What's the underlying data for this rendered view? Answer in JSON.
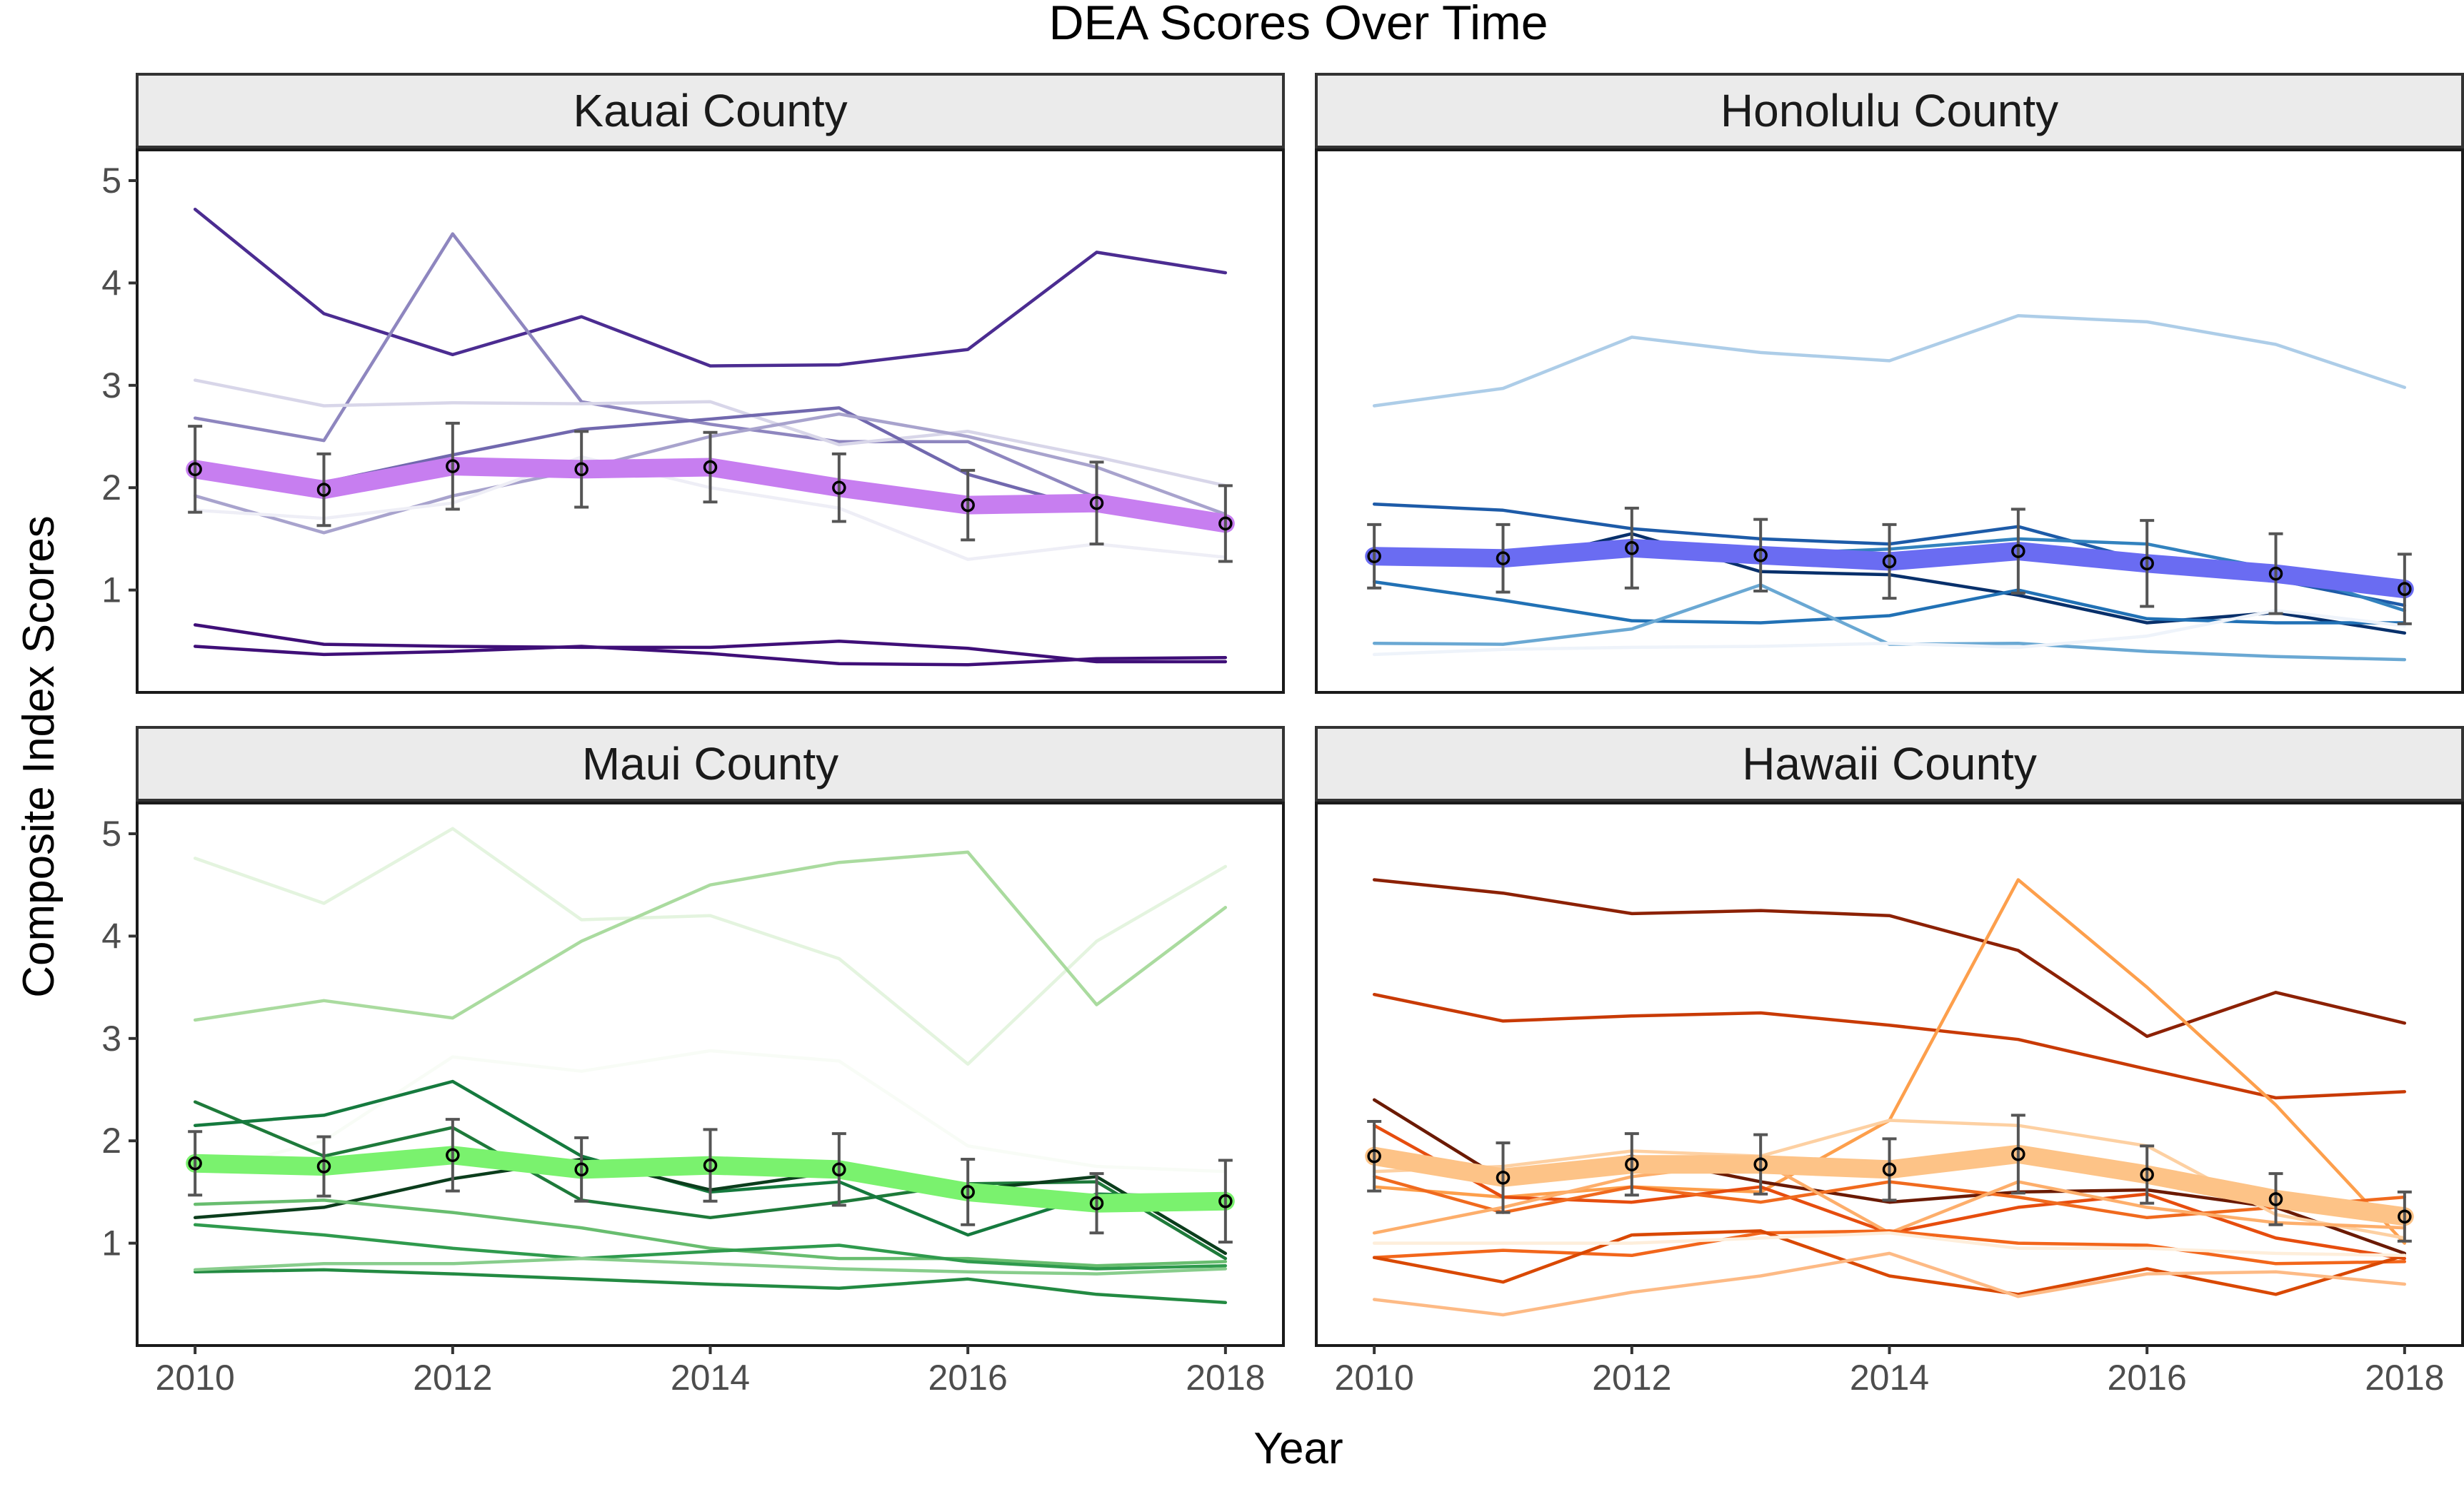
{
  "chart_data": {
    "type": "line",
    "title": "DEA Scores Over Time",
    "xlabel": "Year",
    "ylabel": "Composite Index Scores",
    "x": [
      2010,
      2011,
      2012,
      2013,
      2014,
      2015,
      2016,
      2017,
      2018
    ],
    "xticks": [
      "2010",
      "2012",
      "2014",
      "2016",
      "2018"
    ],
    "yticks": [
      "1",
      "2",
      "3",
      "4",
      "5"
    ],
    "xlim": [
      2009.55,
      2018.45
    ],
    "ylim": [
      0.0,
      5.3
    ],
    "grid": false,
    "legend": "none",
    "panels": [
      {
        "name": "Kauai County",
        "mean": [
          2.18,
          1.98,
          2.21,
          2.18,
          2.2,
          2.0,
          1.83,
          1.85,
          1.65
        ],
        "err": [
          0.42,
          0.35,
          0.42,
          0.37,
          0.34,
          0.33,
          0.34,
          0.4,
          0.37
        ],
        "mean_color": "#c77ef0",
        "series": [
          {
            "color": "#4b2c91",
            "values": [
              4.72,
              3.7,
              3.3,
              3.67,
              3.19,
              3.2,
              3.35,
              4.3,
              4.1
            ]
          },
          {
            "color": "#8e86bf",
            "values": [
              2.68,
              2.46,
              4.48,
              2.84,
              2.62,
              2.45,
              2.45,
              1.9,
              1.6
            ]
          },
          {
            "color": "#d8d6e9",
            "values": [
              3.05,
              2.8,
              2.83,
              2.82,
              2.84,
              2.42,
              2.55,
              2.3,
              2.02
            ]
          },
          {
            "color": "#7168ae",
            "values": [
              2.2,
              2.05,
              2.32,
              2.57,
              2.67,
              2.78,
              2.13,
              1.78,
              1.62
            ]
          },
          {
            "color": "#a8a3cd",
            "values": [
              1.92,
              1.56,
              1.92,
              2.18,
              2.5,
              2.72,
              2.5,
              2.2,
              1.74
            ]
          },
          {
            "color": "#eeeef6",
            "values": [
              1.78,
              1.7,
              1.85,
              2.3,
              2.0,
              1.8,
              1.3,
              1.45,
              1.32
            ]
          },
          {
            "color": "#3f0f78",
            "values": [
              0.66,
              0.47,
              0.45,
              0.44,
              0.44,
              0.5,
              0.43,
              0.3,
              0.3
            ]
          },
          {
            "color": "#3f0f78",
            "values": [
              0.45,
              0.37,
              0.4,
              0.45,
              0.38,
              0.28,
              0.27,
              0.33,
              0.34
            ]
          }
        ]
      },
      {
        "name": "Honolulu County",
        "mean": [
          1.33,
          1.31,
          1.41,
          1.34,
          1.28,
          1.38,
          1.26,
          1.16,
          1.01
        ],
        "err": [
          0.31,
          0.33,
          0.39,
          0.35,
          0.36,
          0.41,
          0.42,
          0.39,
          0.34
        ],
        "mean_color": "#6a6cf2",
        "series": [
          {
            "color": "#adcde8",
            "values": [
              2.8,
              2.97,
              3.47,
              3.32,
              3.24,
              3.68,
              3.62,
              3.4,
              2.98
            ]
          },
          {
            "color": "#1d5ba8",
            "values": [
              1.84,
              1.78,
              1.6,
              1.5,
              1.45,
              1.62,
              1.28,
              1.1,
              0.85
            ]
          },
          {
            "color": "#3282be",
            "values": [
              1.38,
              1.27,
              1.45,
              1.35,
              1.4,
              1.5,
              1.45,
              1.2,
              0.8
            ]
          },
          {
            "color": "#08306b",
            "values": [
              1.38,
              1.25,
              1.55,
              1.18,
              1.15,
              0.95,
              0.68,
              0.78,
              0.58
            ]
          },
          {
            "color": "#2171b5",
            "values": [
              1.08,
              0.9,
              0.7,
              0.68,
              0.75,
              1.0,
              0.72,
              0.68,
              0.68
            ]
          },
          {
            "color": "#6aa8d3",
            "values": [
              0.48,
              0.47,
              0.62,
              1.05,
              0.47,
              0.48,
              0.4,
              0.35,
              0.32
            ]
          },
          {
            "color": "#eef3fa",
            "values": [
              0.37,
              0.42,
              0.44,
              0.45,
              0.48,
              0.44,
              0.55,
              0.8,
              0.65
            ]
          }
        ]
      },
      {
        "name": "Maui County",
        "mean": [
          1.78,
          1.75,
          1.86,
          1.72,
          1.76,
          1.72,
          1.5,
          1.39,
          1.41
        ],
        "err": [
          0.31,
          0.29,
          0.35,
          0.31,
          0.35,
          0.35,
          0.32,
          0.29,
          0.4
        ],
        "mean_color": "#7af26e",
        "series": [
          {
            "color": "#e4f4df",
            "values": [
              4.76,
              4.32,
              5.05,
              4.16,
              4.2,
              3.78,
              2.75,
              3.95,
              4.68
            ]
          },
          {
            "color": "#aadb9f",
            "values": [
              3.18,
              3.37,
              3.2,
              3.95,
              4.5,
              4.72,
              4.82,
              3.33,
              4.28
            ]
          },
          {
            "color": "#f8fcf6",
            "values": [
              1.68,
              2.0,
              2.82,
              2.68,
              2.88,
              2.78,
              1.95,
              1.75,
              1.7
            ]
          },
          {
            "color": "#1e7a3a",
            "values": [
              2.38,
              1.85,
              2.13,
              1.42,
              1.25,
              1.4,
              1.58,
              1.6,
              0.85
            ]
          },
          {
            "color": "#157a3e",
            "values": [
              2.15,
              2.25,
              2.58,
              1.85,
              1.5,
              1.6,
              1.08,
              1.48,
              1.45
            ]
          },
          {
            "color": "#0b3d1c",
            "values": [
              1.25,
              1.35,
              1.63,
              1.82,
              1.52,
              1.7,
              1.52,
              1.65,
              0.9
            ]
          },
          {
            "color": "#68bd6f",
            "values": [
              1.38,
              1.42,
              1.3,
              1.15,
              0.95,
              0.85,
              0.85,
              0.78,
              0.82
            ]
          },
          {
            "color": "#2f9a4d",
            "values": [
              1.18,
              1.08,
              0.95,
              0.85,
              0.92,
              0.98,
              0.82,
              0.75,
              0.78
            ]
          },
          {
            "color": "#238a42",
            "values": [
              0.72,
              0.74,
              0.7,
              0.65,
              0.6,
              0.56,
              0.65,
              0.5,
              0.42
            ]
          },
          {
            "color": "#88cd8c",
            "values": [
              0.74,
              0.8,
              0.8,
              0.85,
              0.8,
              0.75,
              0.72,
              0.7,
              0.75
            ]
          }
        ]
      },
      {
        "name": "Hawaii County",
        "mean": [
          1.85,
          1.64,
          1.77,
          1.77,
          1.72,
          1.87,
          1.67,
          1.43,
          1.26
        ],
        "err": [
          0.34,
          0.34,
          0.3,
          0.29,
          0.3,
          0.38,
          0.28,
          0.25,
          0.24
        ],
        "mean_color": "#fdc387",
        "series": [
          {
            "color": "#8c2104",
            "values": [
              4.55,
              4.42,
              4.22,
              4.25,
              4.2,
              3.86,
              3.02,
              3.45,
              3.15
            ]
          },
          {
            "color": "#c83a05",
            "values": [
              3.43,
              3.17,
              3.22,
              3.25,
              3.13,
              2.99,
              2.7,
              2.42,
              2.48
            ]
          },
          {
            "color": "#fd9f4c",
            "values": [
              1.55,
              1.45,
              1.55,
              1.5,
              2.2,
              4.55,
              3.5,
              2.35,
              1.0
            ]
          },
          {
            "color": "#6b1a02",
            "values": [
              2.4,
              1.62,
              1.85,
              1.6,
              1.4,
              1.5,
              1.52,
              1.35,
              0.9
            ]
          },
          {
            "color": "#e64d0e",
            "values": [
              2.15,
              1.45,
              1.4,
              1.55,
              1.1,
              1.35,
              1.48,
              1.05,
              0.85
            ]
          },
          {
            "color": "#f06a1e",
            "values": [
              1.65,
              1.3,
              1.55,
              1.4,
              1.6,
              1.45,
              1.25,
              1.35,
              1.45
            ]
          },
          {
            "color": "#fdd0a2",
            "values": [
              1.7,
              1.75,
              1.9,
              1.85,
              2.2,
              2.15,
              1.95,
              1.28,
              1.05
            ]
          },
          {
            "color": "#fdae6b",
            "values": [
              1.1,
              1.35,
              1.65,
              1.8,
              1.1,
              1.6,
              1.35,
              1.2,
              1.15
            ]
          },
          {
            "color": "#f2661b",
            "values": [
              0.86,
              0.93,
              0.88,
              1.1,
              1.12,
              1.0,
              0.98,
              0.8,
              0.82
            ]
          },
          {
            "color": "#d94801",
            "values": [
              0.86,
              0.62,
              1.08,
              1.12,
              0.68,
              0.5,
              0.75,
              0.5,
              0.88
            ]
          },
          {
            "color": "#fdba85",
            "values": [
              0.45,
              0.3,
              0.52,
              0.68,
              0.9,
              0.48,
              0.7,
              0.72,
              0.6
            ]
          },
          {
            "color": "#feeedb",
            "values": [
              1.0,
              1.0,
              1.0,
              1.05,
              1.1,
              0.95,
              0.95,
              0.9,
              0.88
            ]
          }
        ]
      }
    ]
  }
}
